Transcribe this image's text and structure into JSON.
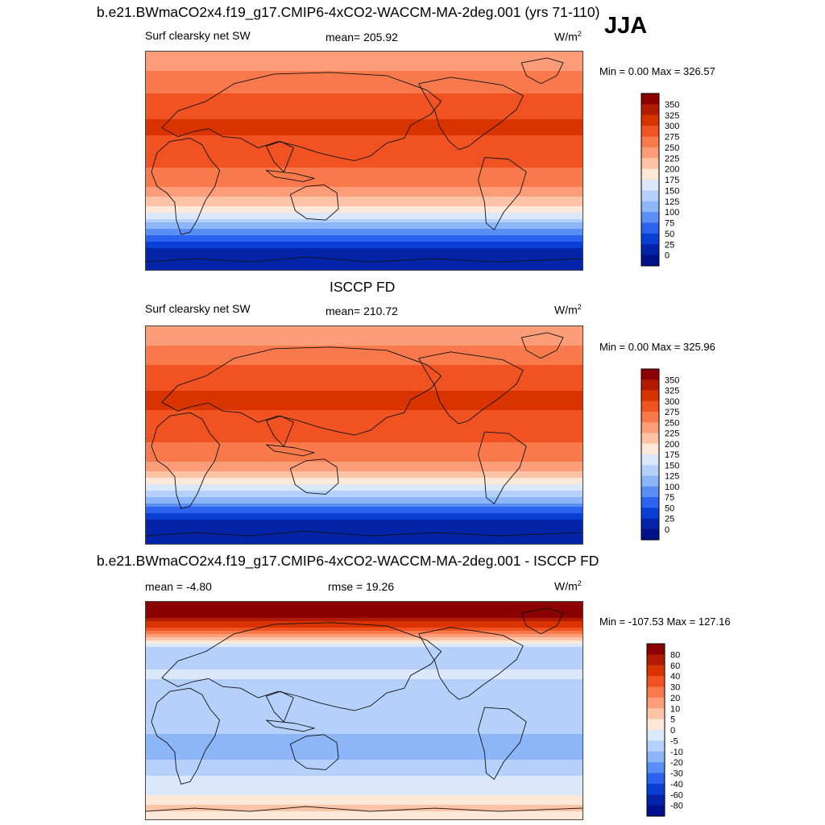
{
  "season": "JJA",
  "chart_data": [
    {
      "type": "heatmap",
      "title": "b.e21.BWmaCO2x4.f19_g17.CMIP6-4xCO2-WACCM-MA-2deg.001 (yrs 71-110)",
      "subtitle_left": "Surf clearsky net SW",
      "mean_text": "mean= 205.92",
      "units": "W/m",
      "units_sup": "2",
      "minmax_text": "Min =   0.00 Max = 326.57",
      "min": 0.0,
      "max": 326.57,
      "colorbar_levels": [
        "350",
        "325",
        "300",
        "275",
        "250",
        "225",
        "200",
        "175",
        "150",
        "125",
        "100",
        "75",
        "50",
        "25",
        "0"
      ],
      "colorbar_colors": [
        "#8b0000",
        "#b31b00",
        "#d93400",
        "#f05222",
        "#f87a4c",
        "#fb9d78",
        "#fcc3a6",
        "#fde8d8",
        "#dbe8fb",
        "#b5d1fb",
        "#8cb6f8",
        "#5a8ef5",
        "#2b63ee",
        "#0a3fd6",
        "#0324a8",
        "#00108a"
      ],
      "latitude_profile": [
        [
          -90,
          0
        ],
        [
          -80,
          8
        ],
        [
          -70,
          30
        ],
        [
          -60,
          80
        ],
        [
          -50,
          135
        ],
        [
          -40,
          185
        ],
        [
          -30,
          225
        ],
        [
          -20,
          255
        ],
        [
          -10,
          272
        ],
        [
          0,
          280
        ],
        [
          10,
          288
        ],
        [
          20,
          300
        ],
        [
          30,
          302
        ],
        [
          40,
          298
        ],
        [
          50,
          285
        ],
        [
          60,
          270
        ],
        [
          70,
          255
        ],
        [
          80,
          240
        ],
        [
          90,
          235
        ]
      ]
    },
    {
      "type": "heatmap",
      "title": "ISCCP FD",
      "subtitle_left": "Surf clearsky net SW",
      "mean_text": "mean= 210.72",
      "units": "W/m",
      "units_sup": "2",
      "minmax_text": "Min =   0.00 Max = 325.96",
      "min": 0.0,
      "max": 325.96,
      "colorbar_levels": [
        "350",
        "325",
        "300",
        "275",
        "250",
        "225",
        "200",
        "175",
        "150",
        "125",
        "100",
        "75",
        "50",
        "25",
        "0"
      ],
      "colorbar_colors": [
        "#8b0000",
        "#b31b00",
        "#d93400",
        "#f05222",
        "#f87a4c",
        "#fb9d78",
        "#fcc3a6",
        "#fde8d8",
        "#dbe8fb",
        "#b5d1fb",
        "#8cb6f8",
        "#5a8ef5",
        "#2b63ee",
        "#0a3fd6",
        "#0324a8",
        "#00108a"
      ],
      "latitude_profile": [
        [
          -90,
          0
        ],
        [
          -80,
          6
        ],
        [
          -70,
          25
        ],
        [
          -60,
          75
        ],
        [
          -50,
          130
        ],
        [
          -40,
          182
        ],
        [
          -30,
          222
        ],
        [
          -20,
          255
        ],
        [
          -10,
          273
        ],
        [
          0,
          280
        ],
        [
          10,
          290
        ],
        [
          20,
          300
        ],
        [
          30,
          303
        ],
        [
          40,
          298
        ],
        [
          50,
          285
        ],
        [
          60,
          270
        ],
        [
          70,
          255
        ],
        [
          80,
          245
        ],
        [
          90,
          240
        ]
      ]
    },
    {
      "type": "heatmap",
      "title": "b.e21.BWmaCO2x4.f19_g17.CMIP6-4xCO2-WACCM-MA-2deg.001 - ISCCP FD",
      "mean_text": "mean =  -4.80",
      "rmse_text": "rmse =  19.26",
      "units": "W/m",
      "units_sup": "2",
      "minmax_text": "Min = -107.53 Max = 127.16",
      "min": -107.53,
      "max": 127.16,
      "colorbar_levels": [
        "80",
        "60",
        "40",
        "30",
        "20",
        "10",
        "5",
        "0",
        "-5",
        "-10",
        "-20",
        "-30",
        "-40",
        "-60",
        "-80"
      ],
      "colorbar_colors": [
        "#8b0000",
        "#b31b00",
        "#d93400",
        "#f05222",
        "#f87a4c",
        "#fb9d78",
        "#fcc3a6",
        "#fde8d8",
        "#dbe8fb",
        "#b5d1fb",
        "#8cb6f8",
        "#5a8ef5",
        "#2b63ee",
        "#0a3fd6",
        "#0324a8",
        "#00108a"
      ],
      "latitude_profile": [
        [
          -90,
          2
        ],
        [
          -80,
          6
        ],
        [
          -70,
          0
        ],
        [
          -60,
          -3
        ],
        [
          -50,
          -6
        ],
        [
          -40,
          -10
        ],
        [
          -30,
          -12
        ],
        [
          -20,
          -10
        ],
        [
          -10,
          -6
        ],
        [
          0,
          -5
        ],
        [
          10,
          -8
        ],
        [
          20,
          -6
        ],
        [
          30,
          -4
        ],
        [
          40,
          -6
        ],
        [
          50,
          -8
        ],
        [
          60,
          10
        ],
        [
          70,
          40
        ],
        [
          80,
          100
        ],
        [
          90,
          110
        ]
      ]
    }
  ]
}
